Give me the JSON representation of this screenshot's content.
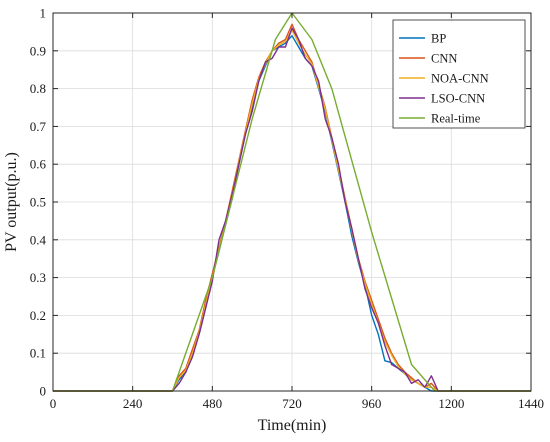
{
  "chart_data": {
    "type": "line",
    "title": "",
    "xlabel": "Time(min)",
    "ylabel": "PV output(p.u.)",
    "xlim": [
      0,
      1440
    ],
    "ylim": [
      0,
      1
    ],
    "xticks": [
      0,
      240,
      480,
      720,
      960,
      1200,
      1440
    ],
    "yticks": [
      0,
      0.1,
      0.2,
      0.3,
      0.4,
      0.5,
      0.6,
      0.7,
      0.8,
      0.9,
      1
    ],
    "grid": true,
    "legend_position": "top-right",
    "series": [
      {
        "name": "BP",
        "color": "#0072BD",
        "x": [
          0,
          360,
          380,
          400,
          420,
          440,
          460,
          480,
          500,
          520,
          540,
          560,
          580,
          600,
          620,
          640,
          660,
          680,
          700,
          720,
          740,
          760,
          780,
          800,
          820,
          840,
          860,
          880,
          900,
          920,
          940,
          960,
          980,
          1000,
          1020,
          1040,
          1060,
          1080,
          1100,
          1120,
          1140,
          1160,
          1440
        ],
        "y": [
          0,
          0,
          0.03,
          0.05,
          0.1,
          0.15,
          0.22,
          0.3,
          0.37,
          0.44,
          0.51,
          0.6,
          0.68,
          0.75,
          0.82,
          0.86,
          0.9,
          0.91,
          0.92,
          0.94,
          0.91,
          0.88,
          0.86,
          0.8,
          0.74,
          0.66,
          0.58,
          0.5,
          0.41,
          0.34,
          0.28,
          0.2,
          0.15,
          0.08,
          0.075,
          0.06,
          0.045,
          0.03,
          0.02,
          0.01,
          0,
          0,
          0
        ]
      },
      {
        "name": "CNN",
        "color": "#D95319",
        "x": [
          0,
          360,
          380,
          400,
          420,
          440,
          460,
          480,
          500,
          520,
          540,
          560,
          580,
          600,
          620,
          640,
          660,
          680,
          700,
          720,
          740,
          760,
          780,
          800,
          820,
          840,
          860,
          880,
          900,
          920,
          940,
          960,
          980,
          1000,
          1020,
          1040,
          1060,
          1080,
          1100,
          1120,
          1140,
          1160,
          1440
        ],
        "y": [
          0,
          0,
          0.04,
          0.06,
          0.11,
          0.16,
          0.24,
          0.31,
          0.38,
          0.45,
          0.53,
          0.61,
          0.69,
          0.77,
          0.83,
          0.87,
          0.9,
          0.92,
          0.93,
          0.97,
          0.93,
          0.9,
          0.87,
          0.81,
          0.75,
          0.67,
          0.59,
          0.51,
          0.43,
          0.35,
          0.29,
          0.24,
          0.19,
          0.14,
          0.1,
          0.07,
          0.05,
          0.035,
          0.02,
          0.01,
          0.02,
          0,
          0
        ]
      },
      {
        "name": "NOA-CNN",
        "color": "#EDB120",
        "x": [
          0,
          360,
          380,
          400,
          420,
          440,
          460,
          480,
          500,
          520,
          540,
          560,
          580,
          600,
          620,
          640,
          660,
          680,
          700,
          720,
          740,
          760,
          780,
          800,
          820,
          840,
          860,
          880,
          900,
          920,
          940,
          960,
          980,
          1000,
          1020,
          1040,
          1060,
          1080,
          1100,
          1120,
          1140,
          1160,
          1440
        ],
        "y": [
          0,
          0,
          0.035,
          0.055,
          0.1,
          0.155,
          0.23,
          0.3,
          0.375,
          0.445,
          0.52,
          0.605,
          0.685,
          0.76,
          0.825,
          0.865,
          0.9,
          0.915,
          0.925,
          0.955,
          0.92,
          0.89,
          0.865,
          0.805,
          0.745,
          0.665,
          0.585,
          0.505,
          0.425,
          0.345,
          0.285,
          0.23,
          0.18,
          0.13,
          0.095,
          0.065,
          0.045,
          0.03,
          0.02,
          0.01,
          0.01,
          0,
          0
        ]
      },
      {
        "name": "LSO-CNN",
        "color": "#7E2F8E",
        "x": [
          0,
          360,
          380,
          400,
          420,
          440,
          460,
          480,
          500,
          520,
          540,
          560,
          580,
          600,
          620,
          640,
          660,
          680,
          700,
          720,
          740,
          760,
          780,
          800,
          820,
          840,
          860,
          880,
          900,
          920,
          940,
          960,
          980,
          1000,
          1020,
          1040,
          1060,
          1080,
          1100,
          1120,
          1140,
          1160,
          1440
        ],
        "y": [
          0,
          0,
          0.02,
          0.05,
          0.09,
          0.15,
          0.22,
          0.29,
          0.4,
          0.45,
          0.52,
          0.6,
          0.68,
          0.74,
          0.82,
          0.87,
          0.88,
          0.91,
          0.91,
          0.96,
          0.93,
          0.88,
          0.86,
          0.82,
          0.72,
          0.67,
          0.6,
          0.5,
          0.43,
          0.35,
          0.27,
          0.22,
          0.18,
          0.12,
          0.07,
          0.06,
          0.05,
          0.02,
          0.03,
          0.01,
          0.04,
          0,
          0
        ]
      },
      {
        "name": "Real-time",
        "color": "#77AC30",
        "x": [
          0,
          360,
          480,
          600,
          670,
          720,
          780,
          840,
          960,
          1080,
          1150,
          1440
        ],
        "y": [
          0,
          0,
          0.3,
          0.72,
          0.93,
          1.0,
          0.93,
          0.8,
          0.42,
          0.07,
          0,
          0
        ]
      }
    ]
  }
}
